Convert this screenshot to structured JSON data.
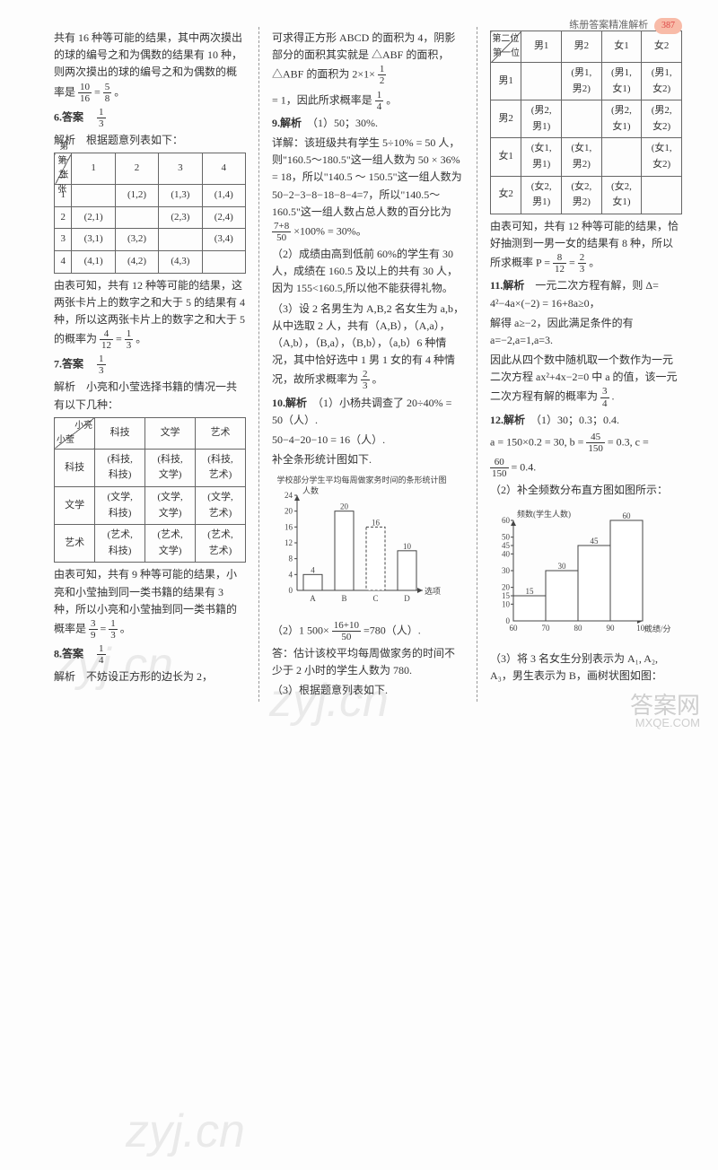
{
  "header": {
    "title": "练册答案精准解析",
    "pagenum": "387"
  },
  "col1": {
    "intro": "共有 16 种等可能的结果，其中两次摸出的球的编号之和为偶数的结果有 10 种，则两次摸出的球的编号之和为偶数的概率是",
    "intro_frac1": {
      "n": "10",
      "d": "16"
    },
    "intro_eq": " = ",
    "intro_frac2": {
      "n": "5",
      "d": "8"
    },
    "intro_end": "。",
    "q6": {
      "label": "6.答案",
      "ans": {
        "n": "1",
        "d": "3"
      },
      "jiexi": "解析　根据题意列表如下：",
      "table": {
        "diag_top": "第二张",
        "diag_left": "第一张",
        "cols": [
          "1",
          "2",
          "3",
          "4"
        ],
        "rows": [
          [
            "1",
            "",
            "(1,2)",
            "(1,3)",
            "(1,4)"
          ],
          [
            "2",
            "(2,1)",
            "",
            "(2,3)",
            "(2,4)"
          ],
          [
            "3",
            "(3,1)",
            "(3,2)",
            "",
            "(3,4)"
          ],
          [
            "4",
            "(4,1)",
            "(4,2)",
            "(4,3)",
            ""
          ]
        ]
      },
      "after1": "由表可知，共有 12 种等可能的结果，这两张卡片上的数字之和大于 5 的结果有 4 种，所以这两张卡片上的数字之和大于 5 的概率为",
      "after_frac1": {
        "n": "4",
        "d": "12"
      },
      "after_eq": " = ",
      "after_frac2": {
        "n": "1",
        "d": "3"
      },
      "after_end": "。"
    },
    "q7": {
      "label": "7.答案",
      "ans": {
        "n": "1",
        "d": "3"
      },
      "jiexi": "解析　小亮和小莹选择书籍的情况一共有以下几种：",
      "table": {
        "diag_top": "小亮",
        "diag_left": "小莹",
        "cols": [
          "科技",
          "文学",
          "艺术"
        ],
        "rows": [
          [
            "科技",
            "(科技,\n科技)",
            "(科技,\n文学)",
            "(科技,\n艺术)"
          ],
          [
            "文学",
            "(文学,\n科技)",
            "(文学,\n文学)",
            "(文学,\n艺术)"
          ],
          [
            "艺术",
            "(艺术,\n科技)",
            "(艺术,\n文学)",
            "(艺术,\n艺术)"
          ]
        ]
      },
      "after1": "由表可知，共有 9 种等可能的结果，小亮和小莹抽到同一类书籍的结果有 3 种，所以小亮和小莹抽到同一类书籍的概率是",
      "after_frac1": {
        "n": "3",
        "d": "9"
      },
      "after_eq": " = ",
      "after_frac2": {
        "n": "1",
        "d": "3"
      },
      "after_end": "。"
    },
    "q8": {
      "label": "8.答案",
      "ans": {
        "n": "1",
        "d": "4"
      },
      "jiexi": "解析　不妨设正方形的边长为 2，"
    }
  },
  "col2": {
    "q8cont1": "可求得正方形 ABCD 的面积为 4，阴影部分的面积其实就是 △ABF 的面积，△ABF 的面积为 2×1×",
    "q8frac1": {
      "n": "1",
      "d": "2"
    },
    "q8cont2": "= 1，因此所求概率是",
    "q8frac2": {
      "n": "1",
      "d": "4"
    },
    "q8end": "。",
    "q9": {
      "label": "9.解析",
      "p1": "（1）50；30%.",
      "p2": "详解：该班级共有学生 5÷10% = 50 人，则\"160.5～180.5\"这一组人数为 50 × 36% = 18，所以\"140.5 ～ 150.5\"这一组人数为 50−2−3−8−18−8−4=7，所以\"140.5～160.5\"这一组人数占总人数的百分比为",
      "p2frac": {
        "n": "7+8",
        "d": "50"
      },
      "p2cont": "×100% = 30%。",
      "p3": "（2）成绩由高到低前 60%的学生有 30 人，成绩在 160.5 及以上的共有 30 人，因为 155<160.5,所以他不能获得礼物。",
      "p4": "（3）设 2 名男生为 A,B,2 名女生为 a,b，从中选取 2 人，共有（A,B），（A,a），（A,b），（B,a），（B,b），（a,b）6 种情况，其中恰好选中 1 男 1 女的有 4 种情况，故所求概率为",
      "p4frac": {
        "n": "2",
        "d": "3"
      },
      "p4end": "。"
    },
    "q10": {
      "label": "10.解析",
      "p1": "（1）小杨共调查了 20÷40% = 50（人）.",
      "p2": "50−4−20−10 = 16（人）.",
      "p3": "补全条形统计图如下.",
      "chart": {
        "title": "学校部分学生平均每周做家务时间的条形统计图",
        "ylabel": "人数",
        "xlabel": "选项",
        "categories": [
          "A",
          "B",
          "C",
          "D"
        ],
        "values": [
          4,
          20,
          16,
          10
        ],
        "ymax": 24,
        "ytick": 4,
        "bar_color": "#ffffff",
        "border_color": "#444",
        "highlight_index": 2
      },
      "p4a": "（2）1 500×",
      "p4frac": {
        "n": "16+10",
        "d": "50"
      },
      "p4b": "=780（人）.",
      "p5": "答：估计该校平均每周做家务的时间不少于 2 小时的学生人数为 780.",
      "p6": "（3）根据题意列表如下."
    }
  },
  "col3": {
    "table": {
      "diag_top": "第二位",
      "diag_left": "第一位",
      "cols": [
        "男1",
        "男2",
        "女1",
        "女2"
      ],
      "rows": [
        [
          "男1",
          "",
          "(男1,\n男2)",
          "(男1,\n女1)",
          "(男1,\n女2)"
        ],
        [
          "男2",
          "(男2,\n男1)",
          "",
          "(男2,\n女1)",
          "(男2,\n女2)"
        ],
        [
          "女1",
          "(女1,\n男1)",
          "(女1,\n男2)",
          "",
          "(女1,\n女2)"
        ],
        [
          "女2",
          "(女2,\n男1)",
          "(女2,\n男2)",
          "(女2,\n女1)",
          ""
        ]
      ]
    },
    "after_table1": "由表可知，共有 12 种等可能的结果，恰好抽测到一男一女的结果有 8 种，所以所求概率 P = ",
    "after_frac1": {
      "n": "8",
      "d": "12"
    },
    "after_eq": " = ",
    "after_frac2": {
      "n": "2",
      "d": "3"
    },
    "after_end": "。",
    "q11": {
      "label": "11.解析",
      "p1": "一元二次方程有解，则 Δ= 4²−4a×(−2) = 16+8a≥0，",
      "p2": "解得 a≥−2，因此满足条件的有 a=−2,a=1,a=3.",
      "p3": "因此从四个数中随机取一个数作为一元二次方程 ax²+4x−2=0 中 a 的值，该一元二次方程有解的概率为",
      "p3frac": {
        "n": "3",
        "d": "4"
      },
      "p3end": "."
    },
    "q12": {
      "label": "12.解析",
      "p1": "（1）30；0.3；0.4.",
      "p2a": "a = 150×0.2 = 30, b = ",
      "p2frac1": {
        "n": "45",
        "d": "150"
      },
      "p2b": " = 0.3, c =",
      "p2frac2": {
        "n": "60",
        "d": "150"
      },
      "p2c": " = 0.4.",
      "p3": "（2）补全频数分布直方图如图所示：",
      "chart": {
        "ylabel": "频数(学生人数)",
        "xlabel": "成绩/分",
        "edges": [
          60,
          70,
          80,
          90,
          100
        ],
        "values": [
          15,
          30,
          45,
          60
        ],
        "ymax": 60,
        "yticks": [
          10,
          15,
          20,
          30,
          40,
          45,
          50,
          60
        ],
        "bar_color": "#ffffff",
        "border_color": "#444"
      },
      "p4": "（3）将 3 名女生分别表示为 A₁, A₂, A₃，男生表示为 B，画树状图如图："
    }
  },
  "watermarks": {
    "w1": "zyj.cn",
    "w2": "zyj.cn",
    "w3": "zyj.cn",
    "footer1": "答案网",
    "footer2": "MXQE.COM"
  }
}
